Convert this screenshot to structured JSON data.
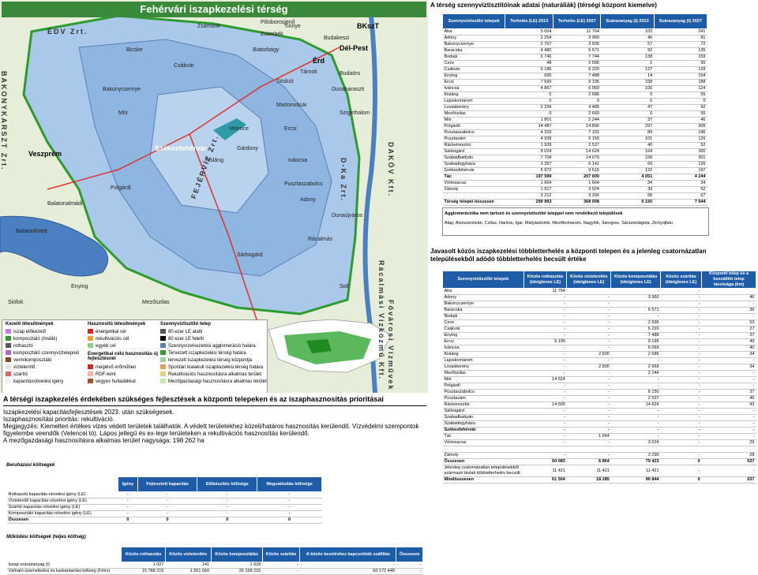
{
  "map": {
    "title": "Fehérvári iszapkezelési térség",
    "cities": [
      {
        "name": "Veszprém",
        "big": true
      },
      {
        "name": "Székesfehérvár",
        "big": true
      },
      {
        "name": "Érd",
        "big": true
      },
      {
        "name": "BKszT",
        "big": true
      },
      {
        "name": "Dél-Pest",
        "big": true
      }
    ],
    "places": [
      "Zsámbék",
      "Budakeszi",
      "Tinnye",
      "Pilisborosjenő",
      "Budaörs",
      "Biatorbágy",
      "Zsámbok",
      "Bicske",
      "Csákvár",
      "Tárnok",
      "Sóskút",
      "Martonvásár",
      "Bakonycsernye",
      "Mór",
      "Kisláng",
      "Dunaharaszti",
      "Szigethalom",
      "Ercsi",
      "Iváncsa",
      "Velence",
      "Gárdony",
      "Polgárdi",
      "Sárbogárd",
      "Mezőszilas",
      "Enying",
      "Siófok",
      "Balatonalmádi",
      "Balatonfüred",
      "Dunaújváros",
      "Rácalmás",
      "Adony",
      "Pusztaszabolcs",
      "Solt"
    ],
    "side_labels": [
      "ÉDV Zrt.",
      "BAKONYKARSZT Zrt.",
      "FEJÉRVÍZ Zrt.",
      "DAKÖV Kft.",
      "D-Ka Zrt.",
      "Rácalmási Vízközmű Kft.",
      "Fővárosi Vízművek Zrt."
    ],
    "legend": {
      "col1_title": "Kezelő létesítmények",
      "col1": [
        "iszap előkezelő",
        "komposztáló (önálló)",
        "rothasztó",
        "komposztáló szennyvíztelepnél",
        "vermikomposztáló",
        "víztelenítő",
        "szárító",
        "kapacitásnövelési igény"
      ],
      "col2_title": "Hasznosító létesítmények",
      "col2": [
        "energetikai cél",
        "rekultivációs cél",
        "egyéb cél"
      ],
      "col2b_title": "Energetikai célú hasznosítás új fejlesztésnél",
      "col2b": [
        "meglévő erőműben",
        "RDF-ként",
        "vegyes hulladékkal"
      ],
      "col3_title": "Szennyvíztisztító telep",
      "col3": [
        "80 ezer LE alatti",
        "80 ezer LE feletti",
        "Szennyvízelvezetési agglomeráció határa",
        "Tervezett iszapkezelési térség határa",
        "tervezett iszapkezelési térség központja",
        "Spontán kialakult iszapkezelési térség határa",
        "Rekultivációs hasznosításra alkalmas terület",
        "Mezőgazdasági hasznosításra alkalmas terület"
      ]
    },
    "colors": {
      "title_bg": "#3b8a3b",
      "water": "#4a7fc1",
      "region": "#a9c8ea",
      "border_green": "#2e9b2e",
      "agglo": "#5b7fb2"
    }
  },
  "priorities": {
    "title": "A térségi iszapkezelés érdekében szükséges fejlesztések a központi telepeken és az iszaphasznosítás prioritásai",
    "lines": [
      "Iszapkezelési kapacitásfejlesztések 2023. után szükségesek.",
      "Iszaphasznosítási prioritás: rekultiváció.",
      "Megjegyzés: Kiemelten értékes vizes védett területek találhatók. A védett területekhez közeli/határos hasznosítás kerülendő.  Vízvédelmi szempontok figyelembe veendők (Velencei tó).  Lápos jellegű és ex-lege területeken a rekultivációs hasznosítás kerülendő.",
      "A mezőgazdasági hasznosításra alkalmas terület nagysága: 198 262 ha"
    ]
  },
  "beruhazasi": {
    "title": "Beruházási költségek",
    "headers": [
      "",
      "Igény",
      "Fejlesztett kapacitás",
      "Előkészítés költsége",
      "Megvalósítás költsége"
    ],
    "rows": [
      [
        "Rothasztó kapacitás-növelési igény (LE)",
        "-",
        "-",
        "-",
        "-"
      ],
      [
        "Víztelenítő kapacitás-növelési igény (LE)",
        "-",
        "-",
        "-",
        "-"
      ],
      [
        "Szárító kapacitás-növelési igény (LE)",
        "-",
        "-",
        "-",
        "-"
      ],
      [
        "Komposztáló kapacitás-növelési igény (LE)",
        "-",
        "-",
        "-",
        "-"
      ],
      [
        "Összesen",
        "0",
        "0",
        "0",
        "0"
      ]
    ]
  },
  "mukodesi": {
    "title": "Működési költségek (teljes költség)",
    "headers": [
      "",
      "Közös rothasztás",
      "Közös víztelenítés",
      "Közös komposztálás",
      "Közös szárítás",
      "A közös kezeléshez kapcsolódó szállítás",
      "Összesen"
    ],
    "rows": [
      [
        "Iszap szárazanyag (t)",
        "1 027",
        "141",
        "1 628",
        "-",
        "-",
        "-"
      ],
      [
        "Várható üzemeltetési és karbantartási költség (Ft/év)",
        "15 788 219",
        "1 551 560",
        "26 158 215",
        "-",
        "60 172 448",
        "-"
      ]
    ]
  },
  "table1": {
    "title": "A térség szennyvíztisztítóinak adatai (naturáliák) (térségi központ kiemelve)",
    "headers": [
      "Szennyvíztisztító telepek",
      "Terhelés (LE) 2013",
      "Terhelés (LE) 2027",
      "Szárazanyag (t) 2013",
      "Szárazanyag (t) 2027"
    ],
    "rows": [
      [
        "Aba",
        "5 004",
        "11 764",
        "103",
        "241"
      ],
      [
        "Adony",
        "2 254",
        "3 960",
        "46",
        "81"
      ],
      [
        "Bakonycsernye",
        "2 767",
        "3 505",
        "57",
        "72"
      ],
      [
        "Baracska",
        "4 480",
        "6 571",
        "92",
        "135"
      ],
      [
        "Bodajk",
        "6 746",
        "7 744",
        "138",
        "159"
      ],
      [
        "Cece",
        "48",
        "2 696",
        "1",
        "55"
      ],
      [
        "Csákvár",
        "6 186",
        "6 220",
        "127",
        "128"
      ],
      [
        "Enying",
        "695",
        "7 488",
        "14",
        "154"
      ],
      [
        "Ercsi",
        "7 699",
        "9 195",
        "158",
        "188"
      ],
      [
        "Iváncsa",
        "4 867",
        "6 069",
        "100",
        "124"
      ],
      [
        "Kisláng",
        "0",
        "2 686",
        "0",
        "55"
      ],
      [
        "Lajoskomárom",
        "0",
        "0",
        "0",
        "0"
      ],
      [
        "Lovasberény",
        "2 299",
        "4 485",
        "47",
        "92"
      ],
      [
        "Mezőszilas",
        "0",
        "2 669",
        "0",
        "55"
      ],
      [
        "Mór",
        "1 801",
        "2 244",
        "37",
        "46"
      ],
      [
        "Polgárdi",
        "14 487",
        "14 896",
        "297",
        "305"
      ],
      [
        "Pusztaszabolcs",
        "4 333",
        "7 101",
        "89",
        "146"
      ],
      [
        "Pusztavám",
        "4 939",
        "6 150",
        "101",
        "126"
      ],
      [
        "Rácketresztúr",
        "1 939",
        "2 537",
        "40",
        "52"
      ],
      [
        "Sárbogárd",
        "8 024",
        "14 624",
        "164",
        "300"
      ],
      [
        "Szabadbattyán",
        "7 704",
        "14 670",
        "158",
        "301"
      ],
      [
        "Szabadegyháza",
        "3 357",
        "6 141",
        "69",
        "126"
      ],
      [
        "Székesfehérvár",
        "5 972",
        "9 615",
        "122",
        "197"
      ],
      [
        "Tác",
        "197 599",
        "207 000",
        "4 051",
        "4 244"
      ],
      [
        "Vértesacsa",
        "1 664",
        "1 664",
        "34",
        "34"
      ],
      [
        "Zámoly",
        "1 917",
        "3 024",
        "39",
        "62"
      ],
      [
        "",
        "3 212",
        "3 290",
        "66",
        "67"
      ],
      [
        "Térség telepei összesen",
        "299 993",
        "368 008",
        "6 150",
        "7 544"
      ]
    ]
  },
  "agglo_box": {
    "title": "Agglomerációba nem tartozó és szennyvíztisztító teleppel nem rendelkező települések",
    "text": "Alap, Alsószentiván, Csősz, Hantos, Igar, Mátyásdomb, Mezőkomárom, Nagylók, Sáregres, Sárszentágota, Zichyújfalu"
  },
  "table2": {
    "title": "Javasolt közös iszapkezelési többletterhelés a központi telepen és a jelenleg csatornázatlan településekből adódó többletterhelés becsült értéke",
    "headers": [
      "Szennyvíztisztító telepek",
      "Közös rothasztás (ideiglenes LE)",
      "Közös víztelenítés (ideiglenes LE)",
      "Közös komposztálás (ideiglenes LE)",
      "Közös szárítás (ideiglenes LE)",
      "Központi telep és a beszállító telep távolsága (km)"
    ],
    "rows": [
      [
        "Aba",
        "11 764",
        "",
        "-",
        "-",
        ""
      ],
      [
        "Adony",
        "-",
        "-",
        "3 960",
        "-",
        "46"
      ],
      [
        "Bakonycsernye",
        "-",
        "-",
        "",
        "-",
        "-"
      ],
      [
        "Baracska",
        "-",
        "-",
        "6 571",
        "-",
        "36"
      ],
      [
        "Bodajk",
        "-",
        "-",
        "-",
        "-",
        "-"
      ],
      [
        "Cece",
        "-",
        "-",
        "2 696",
        "-",
        "53"
      ],
      [
        "Csákvár",
        "-",
        "-",
        "6 220",
        "-",
        "27"
      ],
      [
        "Enying",
        "-",
        "-",
        "7 488",
        "-",
        "37"
      ],
      [
        "Ercsi",
        "9 195",
        "-",
        "9 195",
        "-",
        "49"
      ],
      [
        "Iváncsa",
        "-",
        "-",
        "6 069",
        "-",
        "40"
      ],
      [
        "Kisláng",
        "-",
        "2 600",
        "2 686",
        "-",
        "34"
      ],
      [
        "Lajoskomárom",
        "-",
        "-",
        "-",
        "-",
        "-"
      ],
      [
        "Lovasberény",
        "-",
        "2 600",
        "2 669",
        "-",
        "34"
      ],
      [
        "Mezőszilas",
        "-",
        "-",
        "2 244",
        "-",
        "-"
      ],
      [
        "Mór",
        "14 624",
        "-",
        "-",
        "-",
        "-"
      ],
      [
        "Polgárdi",
        "-",
        "-",
        "-",
        "-",
        "-"
      ],
      [
        "Pusztaszabolcs",
        "-",
        "-",
        "6 150",
        "-",
        "37"
      ],
      [
        "Pusztavám",
        "-",
        "-",
        "2 537",
        "-",
        "45"
      ],
      [
        "Ráckeresztúr",
        "14 500",
        "-",
        "14 624",
        "-",
        "43"
      ],
      [
        "Sárbogárd",
        "-",
        "-",
        "-",
        "-",
        "-"
      ],
      [
        "Szabadbattyán",
        "-",
        "-",
        "-",
        "-",
        "-"
      ],
      [
        "Szabadegyháza",
        "-",
        "-",
        "-",
        "-",
        "-"
      ],
      [
        "Székesfehérvár",
        "-",
        "-",
        "-",
        "-",
        "-"
      ],
      [
        "Tác",
        "-",
        "1 664",
        "-",
        "-",
        "-"
      ],
      [
        "Vértesacsa",
        "-",
        "-",
        "3 024",
        "-",
        "29"
      ],
      [
        "",
        "",
        " ",
        "",
        "",
        ""
      ],
      [
        "Zámoly",
        "-",
        "-",
        "3 290",
        "-",
        "28"
      ],
      [
        "Összesen",
        "50 083",
        "6 864",
        "79 423",
        "0",
        "537"
      ],
      [
        "Jelenleg csatornázatlan településekből származó távlati többletterhelés becsült",
        "11 421",
        "11 421",
        "11 421",
        "-",
        "-"
      ],
      [
        "Mindösszesen",
        "61 504",
        "18 285",
        "90 844",
        "0",
        "537"
      ]
    ]
  }
}
